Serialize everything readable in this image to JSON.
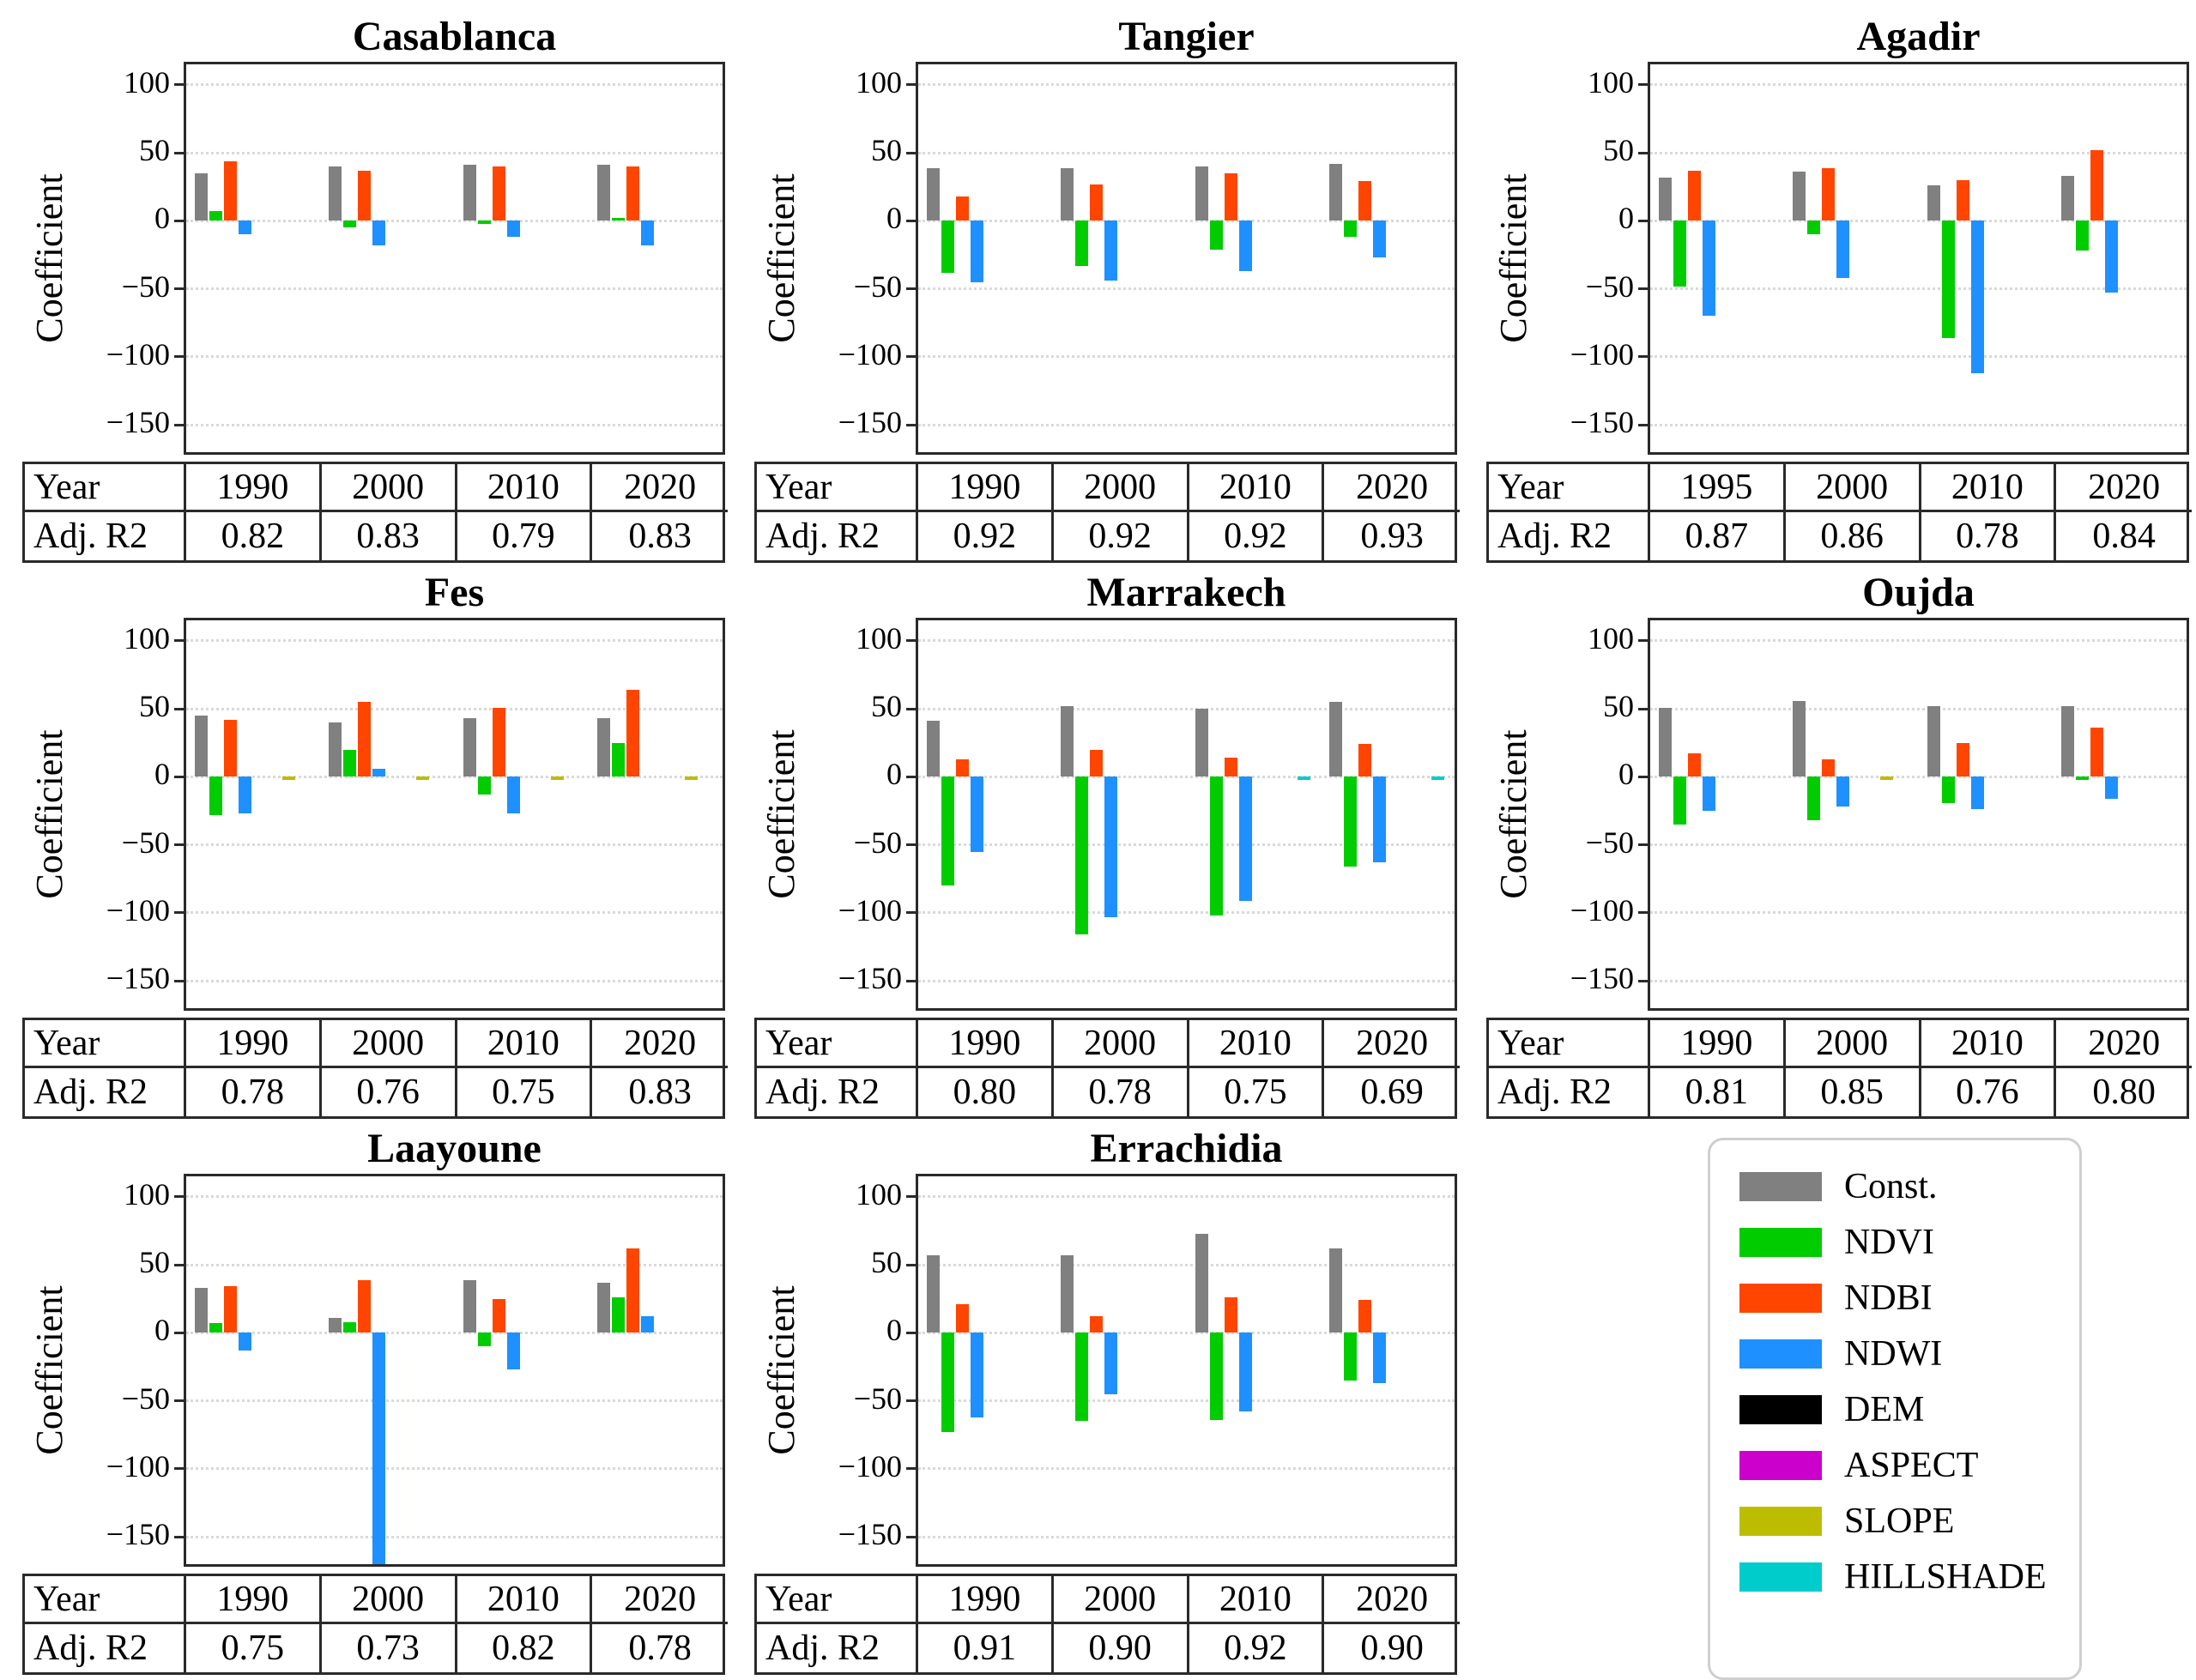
{
  "figure": {
    "ylabel": "Coefficient",
    "yticks": [
      100,
      50,
      0,
      -50,
      -100,
      -150
    ],
    "ylim": [
      -170,
      115
    ],
    "grid": "dotted-horizontal",
    "table_row_labels": {
      "year": "Year",
      "r2": "Adj. R2"
    }
  },
  "legend": {
    "position": "bottom-right-cell",
    "items": [
      {
        "label": "Const.",
        "color": "#808080"
      },
      {
        "label": "NDVI",
        "color": "#00CC00"
      },
      {
        "label": "NDBI",
        "color": "#FF4500"
      },
      {
        "label": "NDWI",
        "color": "#1E90FF"
      },
      {
        "label": "DEM",
        "color": "#000000"
      },
      {
        "label": "ASPECT",
        "color": "#CC00CC"
      },
      {
        "label": "SLOPE",
        "color": "#BDBD00"
      },
      {
        "label": "HILLSHADE",
        "color": "#00CCCC"
      }
    ]
  },
  "chart_data": {
    "type": "bar",
    "ylabel": "Coefficient",
    "series_order": [
      "Const.",
      "NDVI",
      "NDBI",
      "NDWI",
      "DEM",
      "ASPECT",
      "SLOPE",
      "HILLSHADE"
    ],
    "panels": [
      {
        "title": "Casablanca",
        "years": [
          "1990",
          "2000",
          "2010",
          "2020"
        ],
        "adj_r2": [
          "0.82",
          "0.83",
          "0.79",
          "0.83"
        ],
        "series": {
          "Const.": [
            35,
            40,
            41,
            41
          ],
          "NDVI": [
            7,
            -5,
            -2,
            2
          ],
          "NDBI": [
            44,
            37,
            40,
            40
          ],
          "NDWI": [
            -10,
            -18,
            -12,
            -18
          ],
          "DEM": [
            0,
            0,
            0,
            0
          ],
          "ASPECT": [
            0,
            0,
            0,
            0
          ],
          "SLOPE": [
            0,
            0,
            0,
            0
          ],
          "HILLSHADE": [
            0,
            0,
            0,
            0
          ]
        }
      },
      {
        "title": "Tangier",
        "years": [
          "1990",
          "2000",
          "2010",
          "2020"
        ],
        "adj_r2": [
          "0.92",
          "0.92",
          "0.92",
          "0.93"
        ],
        "series": {
          "Const.": [
            39,
            39,
            40,
            42
          ],
          "NDVI": [
            -38,
            -33,
            -21,
            -12
          ],
          "NDBI": [
            18,
            27,
            35,
            29
          ],
          "NDWI": [
            -45,
            -44,
            -37,
            -27
          ],
          "DEM": [
            0,
            0,
            0,
            0
          ],
          "ASPECT": [
            0,
            0,
            0,
            0
          ],
          "SLOPE": [
            0,
            0,
            0,
            0
          ],
          "HILLSHADE": [
            0,
            0,
            0,
            0
          ]
        }
      },
      {
        "title": "Agadir",
        "years": [
          "1995",
          "2000",
          "2010",
          "2020"
        ],
        "adj_r2": [
          "0.87",
          "0.86",
          "0.78",
          "0.84"
        ],
        "series": {
          "Const.": [
            32,
            36,
            26,
            33
          ],
          "NDVI": [
            -48,
            -10,
            -86,
            -22
          ],
          "NDBI": [
            37,
            39,
            30,
            52
          ],
          "NDWI": [
            -70,
            -42,
            -112,
            -53
          ],
          "DEM": [
            0,
            0,
            0,
            0
          ],
          "ASPECT": [
            0,
            0,
            0,
            0
          ],
          "SLOPE": [
            0,
            0,
            0,
            0
          ],
          "HILLSHADE": [
            0,
            0,
            0,
            0
          ]
        }
      },
      {
        "title": "Fes",
        "years": [
          "1990",
          "2000",
          "2010",
          "2020"
        ],
        "adj_r2": [
          "0.78",
          "0.76",
          "0.75",
          "0.83"
        ],
        "series": {
          "Const.": [
            45,
            40,
            43,
            43
          ],
          "NDVI": [
            -28,
            20,
            -13,
            25
          ],
          "NDBI": [
            42,
            55,
            51,
            64
          ],
          "NDWI": [
            -27,
            6,
            -27,
            0
          ],
          "DEM": [
            0,
            0,
            0,
            0
          ],
          "ASPECT": [
            0,
            0,
            0,
            0
          ],
          "SLOPE": [
            -2,
            -2,
            -2,
            -2
          ],
          "HILLSHADE": [
            0,
            0,
            0,
            0
          ]
        }
      },
      {
        "title": "Marrakech",
        "years": [
          "1990",
          "2000",
          "2010",
          "2020"
        ],
        "adj_r2": [
          "0.80",
          "0.78",
          "0.75",
          "0.69"
        ],
        "series": {
          "Const.": [
            41,
            52,
            50,
            55
          ],
          "NDVI": [
            -80,
            -116,
            -102,
            -66
          ],
          "NDBI": [
            13,
            20,
            14,
            24
          ],
          "NDWI": [
            -55,
            -103,
            -91,
            -63
          ],
          "DEM": [
            0,
            0,
            0,
            0
          ],
          "ASPECT": [
            0,
            0,
            0,
            0
          ],
          "SLOPE": [
            0,
            0,
            0,
            0
          ],
          "HILLSHADE": [
            0,
            0,
            -2,
            -2
          ]
        }
      },
      {
        "title": "Oujda",
        "years": [
          "1990",
          "2000",
          "2010",
          "2020"
        ],
        "adj_r2": [
          "0.81",
          "0.85",
          "0.76",
          "0.80"
        ],
        "series": {
          "Const.": [
            51,
            56,
            52,
            52
          ],
          "NDVI": [
            -35,
            -32,
            -19,
            -2
          ],
          "NDBI": [
            17,
            13,
            25,
            36
          ],
          "NDWI": [
            -25,
            -22,
            -24,
            -16
          ],
          "DEM": [
            0,
            0,
            0,
            0
          ],
          "ASPECT": [
            0,
            0,
            0,
            0
          ],
          "SLOPE": [
            0,
            -2,
            0,
            0
          ],
          "HILLSHADE": [
            0,
            0,
            0,
            0
          ]
        }
      },
      {
        "title": "Laayoune",
        "years": [
          "1990",
          "2000",
          "2010",
          "2020"
        ],
        "adj_r2": [
          "0.75",
          "0.73",
          "0.82",
          "0.78"
        ],
        "series": {
          "Const.": [
            33,
            11,
            39,
            37
          ],
          "NDVI": [
            7,
            8,
            -10,
            26
          ],
          "NDBI": [
            34,
            39,
            25,
            62
          ],
          "NDWI": [
            -13,
            -170,
            -27,
            12
          ],
          "DEM": [
            0,
            0,
            0,
            0
          ],
          "ASPECT": [
            0,
            0,
            0,
            0
          ],
          "SLOPE": [
            0,
            0,
            0,
            0
          ],
          "HILLSHADE": [
            0,
            0,
            0,
            0
          ]
        }
      },
      {
        "title": "Errachidia",
        "years": [
          "1990",
          "2000",
          "2010",
          "2020"
        ],
        "adj_r2": [
          "0.91",
          "0.90",
          "0.92",
          "0.90"
        ],
        "series": {
          "Const.": [
            57,
            57,
            73,
            62
          ],
          "NDVI": [
            -73,
            -65,
            -64,
            -35
          ],
          "NDBI": [
            21,
            12,
            26,
            24
          ],
          "NDWI": [
            -62,
            -45,
            -58,
            -37
          ],
          "DEM": [
            0,
            0,
            0,
            0
          ],
          "ASPECT": [
            0,
            0,
            0,
            0
          ],
          "SLOPE": [
            0,
            0,
            0,
            0
          ],
          "HILLSHADE": [
            0,
            0,
            0,
            0
          ]
        }
      }
    ]
  }
}
